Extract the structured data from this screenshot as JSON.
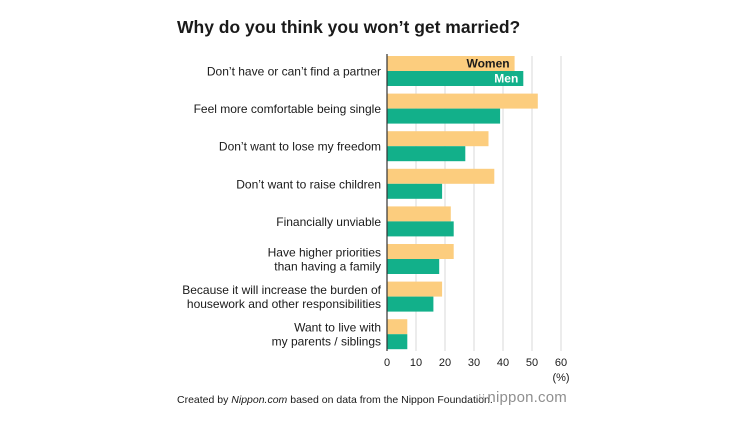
{
  "chart_data": {
    "type": "bar",
    "orientation": "horizontal",
    "title": "Why do you think you won’t get married?",
    "categories": [
      [
        "Don’t have or can’t find a partner"
      ],
      [
        "Feel more comfortable being single"
      ],
      [
        "Don’t want to lose my freedom"
      ],
      [
        "Don’t want to raise children"
      ],
      [
        "Financially unviable"
      ],
      [
        "Have higher priorities",
        "than having a family"
      ],
      [
        "Because it will increase the burden of",
        "housework and other responsibilities"
      ],
      [
        "Want to live with",
        "my parents / siblings"
      ]
    ],
    "series": [
      {
        "name": "Women",
        "color": "#fccd7e",
        "label_color": "#1a1a1a",
        "values": [
          44,
          52,
          35,
          37,
          22,
          23,
          19,
          7
        ]
      },
      {
        "name": "Men",
        "color": "#12b08a",
        "label_color": "#ffffff",
        "values": [
          47,
          39,
          27,
          19,
          23,
          18,
          16,
          7
        ]
      }
    ],
    "xlim": [
      0,
      60
    ],
    "xticks": [
      0,
      10,
      20,
      30,
      40,
      50,
      60
    ],
    "xunit": "(%)",
    "grid": true,
    "legend": "inside first bar pair"
  },
  "footer": {
    "prefix": "Created by ",
    "site": "Nippon.com",
    "suffix": " based on data from the Nippon Foundation."
  },
  "logo": {
    "dots": "⁝⁝",
    "text": "nippon.com"
  }
}
